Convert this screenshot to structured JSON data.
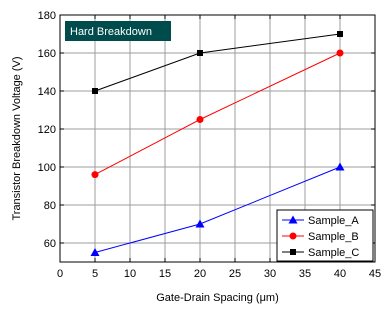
{
  "chart_data": {
    "type": "line",
    "xlabel": "Gate-Drain Spacing (μm)",
    "ylabel": "Transistor Breakdown Voltage (V)",
    "xlim": [
      0,
      45
    ],
    "ylim": [
      50,
      180
    ],
    "xticks": [
      0,
      5,
      10,
      15,
      20,
      25,
      30,
      35,
      40,
      45
    ],
    "yticks": [
      60,
      80,
      100,
      120,
      140,
      160,
      180
    ],
    "grid": true,
    "legend_position": "bottom-right",
    "annotation": {
      "text": "Hard Breakdown",
      "background": "#004c4c",
      "color": "#ffffff"
    },
    "series": [
      {
        "name": "Sample_A",
        "color": "#0000ff",
        "marker": "triangle",
        "x": [
          5,
          20,
          40
        ],
        "values": [
          55,
          70,
          100
        ]
      },
      {
        "name": "Sample_B",
        "color": "#ff0000",
        "marker": "circle",
        "x": [
          5,
          20,
          40
        ],
        "values": [
          96,
          125,
          160
        ]
      },
      {
        "name": "Sample_C",
        "color": "#000000",
        "marker": "square",
        "x": [
          5,
          20,
          40
        ],
        "values": [
          140,
          160,
          170
        ]
      }
    ]
  }
}
